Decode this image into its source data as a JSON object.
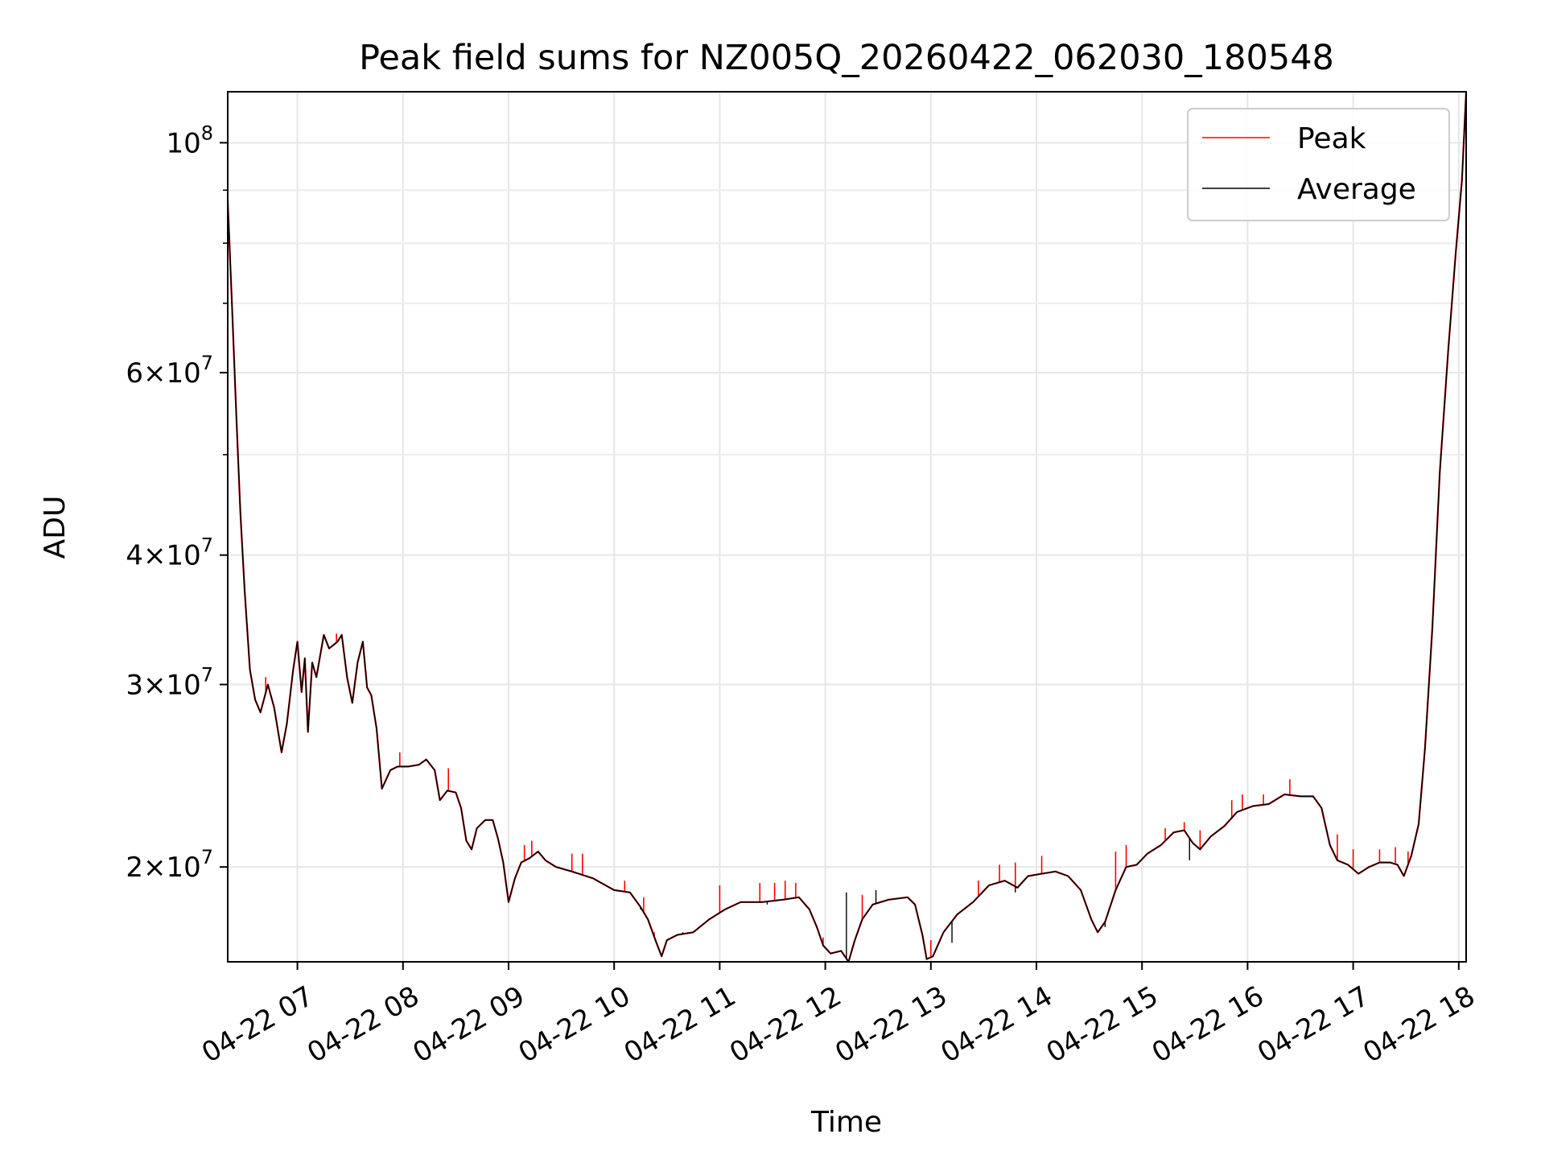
{
  "chart_data": {
    "type": "line",
    "title": "Peak field sums for NZ005Q_20260422_062030_180548",
    "xlabel": "Time",
    "ylabel": "ADU",
    "yscale": "log",
    "ylim": [
      16200000,
      112000000
    ],
    "xlim_hours": [
      6.34,
      18.07
    ],
    "grid": true,
    "legend_position": "upper right",
    "x_ticks": [
      {
        "hour": 7,
        "label": "04-22 07"
      },
      {
        "hour": 8,
        "label": "04-22 08"
      },
      {
        "hour": 9,
        "label": "04-22 09"
      },
      {
        "hour": 10,
        "label": "04-22 10"
      },
      {
        "hour": 11,
        "label": "04-22 11"
      },
      {
        "hour": 12,
        "label": "04-22 12"
      },
      {
        "hour": 13,
        "label": "04-22 13"
      },
      {
        "hour": 14,
        "label": "04-22 14"
      },
      {
        "hour": 15,
        "label": "04-22 15"
      },
      {
        "hour": 16,
        "label": "04-22 16"
      },
      {
        "hour": 17,
        "label": "04-22 17"
      },
      {
        "hour": 18,
        "label": "04-22 18"
      }
    ],
    "y_ticks_major": [
      {
        "value": 20000000,
        "mant": "2",
        "exp": "7"
      },
      {
        "value": 30000000,
        "mant": "3",
        "exp": "7"
      },
      {
        "value": 40000000,
        "mant": "4",
        "exp": "7"
      },
      {
        "value": 60000000,
        "mant": "6",
        "exp": "7"
      },
      {
        "value": 100000000,
        "mant": "",
        "exp": "8"
      }
    ],
    "y_ticks_minor": [
      50000000,
      70000000,
      80000000,
      90000000
    ],
    "series": [
      {
        "name": "Average",
        "color": "#000000",
        "points": [
          [
            6.34,
            88000000
          ],
          [
            6.38,
            70000000
          ],
          [
            6.42,
            55000000
          ],
          [
            6.46,
            44000000
          ],
          [
            6.5,
            37000000
          ],
          [
            6.55,
            31000000
          ],
          [
            6.6,
            29000000
          ],
          [
            6.65,
            28200000
          ],
          [
            6.72,
            30000000
          ],
          [
            6.78,
            28500000
          ],
          [
            6.85,
            25800000
          ],
          [
            6.9,
            27500000
          ],
          [
            6.96,
            31000000
          ],
          [
            7.0,
            33000000
          ],
          [
            7.04,
            29500000
          ],
          [
            7.07,
            31800000
          ],
          [
            7.1,
            27000000
          ],
          [
            7.14,
            31500000
          ],
          [
            7.18,
            30500000
          ],
          [
            7.25,
            33500000
          ],
          [
            7.3,
            32500000
          ],
          [
            7.38,
            33000000
          ],
          [
            7.42,
            33500000
          ],
          [
            7.47,
            30500000
          ],
          [
            7.52,
            28800000
          ],
          [
            7.57,
            31500000
          ],
          [
            7.62,
            33000000
          ],
          [
            7.66,
            29800000
          ],
          [
            7.7,
            29300000
          ],
          [
            7.75,
            27200000
          ],
          [
            7.8,
            23800000
          ],
          [
            7.88,
            24800000
          ],
          [
            7.95,
            25000000
          ],
          [
            8.05,
            25000000
          ],
          [
            8.15,
            25100000
          ],
          [
            8.22,
            25400000
          ],
          [
            8.3,
            24800000
          ],
          [
            8.35,
            23200000
          ],
          [
            8.42,
            23700000
          ],
          [
            8.5,
            23600000
          ],
          [
            8.55,
            22800000
          ],
          [
            8.6,
            21200000
          ],
          [
            8.65,
            20800000
          ],
          [
            8.7,
            21800000
          ],
          [
            8.78,
            22200000
          ],
          [
            8.85,
            22200000
          ],
          [
            8.9,
            21300000
          ],
          [
            8.95,
            20200000
          ],
          [
            9.0,
            18500000
          ],
          [
            9.06,
            19500000
          ],
          [
            9.12,
            20200000
          ],
          [
            9.2,
            20400000
          ],
          [
            9.28,
            20700000
          ],
          [
            9.35,
            20300000
          ],
          [
            9.45,
            20000000
          ],
          [
            9.6,
            19800000
          ],
          [
            9.8,
            19500000
          ],
          [
            10.0,
            19000000
          ],
          [
            10.15,
            18900000
          ],
          [
            10.25,
            18300000
          ],
          [
            10.32,
            17800000
          ],
          [
            10.4,
            16900000
          ],
          [
            10.45,
            16400000
          ],
          [
            10.5,
            17000000
          ],
          [
            10.6,
            17200000
          ],
          [
            10.75,
            17300000
          ],
          [
            10.9,
            17800000
          ],
          [
            11.05,
            18200000
          ],
          [
            11.2,
            18500000
          ],
          [
            11.4,
            18500000
          ],
          [
            11.6,
            18600000
          ],
          [
            11.75,
            18700000
          ],
          [
            11.85,
            18200000
          ],
          [
            11.92,
            17500000
          ],
          [
            11.98,
            16800000
          ],
          [
            12.05,
            16500000
          ],
          [
            12.15,
            16600000
          ],
          [
            12.22,
            16200000
          ],
          [
            12.28,
            17000000
          ],
          [
            12.35,
            17800000
          ],
          [
            12.45,
            18400000
          ],
          [
            12.6,
            18600000
          ],
          [
            12.78,
            18700000
          ],
          [
            12.85,
            18400000
          ],
          [
            12.92,
            17200000
          ],
          [
            12.96,
            16300000
          ],
          [
            13.02,
            16400000
          ],
          [
            13.12,
            17300000
          ],
          [
            13.25,
            18000000
          ],
          [
            13.4,
            18500000
          ],
          [
            13.55,
            19200000
          ],
          [
            13.7,
            19400000
          ],
          [
            13.82,
            19100000
          ],
          [
            13.92,
            19600000
          ],
          [
            14.05,
            19700000
          ],
          [
            14.18,
            19800000
          ],
          [
            14.3,
            19600000
          ],
          [
            14.42,
            19000000
          ],
          [
            14.52,
            17800000
          ],
          [
            14.58,
            17300000
          ],
          [
            14.65,
            17700000
          ],
          [
            14.75,
            19000000
          ],
          [
            14.85,
            20000000
          ],
          [
            14.95,
            20100000
          ],
          [
            15.05,
            20600000
          ],
          [
            15.18,
            21000000
          ],
          [
            15.3,
            21600000
          ],
          [
            15.4,
            21700000
          ],
          [
            15.48,
            21100000
          ],
          [
            15.55,
            20800000
          ],
          [
            15.65,
            21400000
          ],
          [
            15.78,
            21900000
          ],
          [
            15.9,
            22600000
          ],
          [
            16.05,
            22900000
          ],
          [
            16.2,
            23000000
          ],
          [
            16.35,
            23500000
          ],
          [
            16.5,
            23400000
          ],
          [
            16.62,
            23400000
          ],
          [
            16.7,
            22800000
          ],
          [
            16.78,
            21000000
          ],
          [
            16.85,
            20300000
          ],
          [
            16.95,
            20100000
          ],
          [
            17.05,
            19700000
          ],
          [
            17.15,
            20000000
          ],
          [
            17.25,
            20200000
          ],
          [
            17.35,
            20200000
          ],
          [
            17.42,
            20100000
          ],
          [
            17.48,
            19600000
          ],
          [
            17.55,
            20500000
          ],
          [
            17.62,
            22000000
          ],
          [
            17.68,
            26000000
          ],
          [
            17.75,
            34000000
          ],
          [
            17.82,
            48000000
          ],
          [
            17.9,
            63000000
          ],
          [
            17.97,
            78000000
          ],
          [
            18.03,
            92000000
          ],
          [
            18.07,
            112000000
          ]
        ]
      },
      {
        "name": "Peak",
        "color": "#ff0000",
        "spikes": [
          [
            6.7,
            30500000
          ],
          [
            7.37,
            33600000
          ],
          [
            7.97,
            25800000
          ],
          [
            8.43,
            24900000
          ],
          [
            9.15,
            21000000
          ],
          [
            9.22,
            21200000
          ],
          [
            9.6,
            20600000
          ],
          [
            9.7,
            20600000
          ],
          [
            10.1,
            19400000
          ],
          [
            10.28,
            18700000
          ],
          [
            10.38,
            17300000
          ],
          [
            11.0,
            19200000
          ],
          [
            11.38,
            19300000
          ],
          [
            11.52,
            19300000
          ],
          [
            11.62,
            19400000
          ],
          [
            11.72,
            19300000
          ],
          [
            11.98,
            17100000
          ],
          [
            12.35,
            18800000
          ],
          [
            13.0,
            17000000
          ],
          [
            13.45,
            19400000
          ],
          [
            13.65,
            20100000
          ],
          [
            13.8,
            20200000
          ],
          [
            14.05,
            20500000
          ],
          [
            14.75,
            20700000
          ],
          [
            14.85,
            21000000
          ],
          [
            15.22,
            21800000
          ],
          [
            15.4,
            22100000
          ],
          [
            15.55,
            21700000
          ],
          [
            15.85,
            23200000
          ],
          [
            15.95,
            23500000
          ],
          [
            16.15,
            23500000
          ],
          [
            16.4,
            24300000
          ],
          [
            16.85,
            21500000
          ],
          [
            17.0,
            20800000
          ],
          [
            17.25,
            20800000
          ],
          [
            17.4,
            20900000
          ],
          [
            17.52,
            20700000
          ]
        ]
      }
    ],
    "average_spikes": [
      [
        10.25,
        18200000
      ],
      [
        10.65,
        17300000
      ],
      [
        11.45,
        18400000
      ],
      [
        12.2,
        18900000
      ],
      [
        12.48,
        19000000
      ],
      [
        13.2,
        16900000
      ],
      [
        13.8,
        18900000
      ],
      [
        14.65,
        17500000
      ],
      [
        15.45,
        20300000
      ]
    ]
  }
}
